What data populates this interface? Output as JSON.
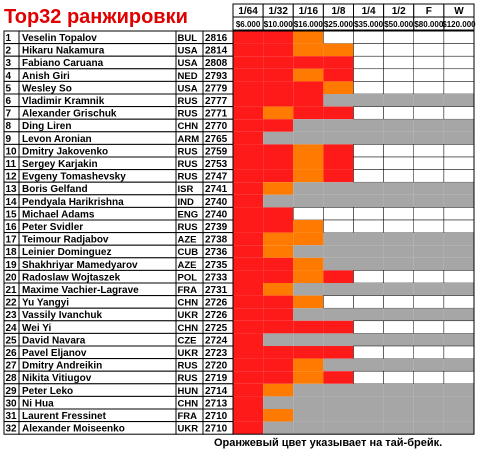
{
  "title": "Top32 ранжировки",
  "footnote": "Оранжевый цвет указывает на тай-брейк.",
  "colors": {
    "reached": "#ff1a1a",
    "tiebreak": "#ff7a00",
    "eliminated": "#a6a6a6",
    "empty": "#ffffff",
    "border": "#000000"
  },
  "chart_data": {
    "type": "table",
    "title": "Top32 ранжировки",
    "legend": {
      "tiebreak": "Оранжевый цвет указывает на тай-брейк."
    },
    "rounds": [
      "1/64",
      "1/32",
      "1/16",
      "1/8",
      "1/4",
      "1/2",
      "F",
      "W"
    ],
    "prizes": [
      "$6.000",
      "$10.000",
      "$16.000",
      "$25.000",
      "$35.000",
      "$50.000",
      "$80.000",
      "$120.000"
    ],
    "cell_states": "per round: R = reached (red), T = reached via tie-break (orange), E = eliminated (grey), - = empty",
    "players": [
      {
        "rank": "1",
        "name": "Veselin Topalov",
        "country": "BUL",
        "rating": "2816",
        "rounds": [
          "R",
          "R",
          "T",
          "-",
          "-",
          "-",
          "-",
          "-"
        ]
      },
      {
        "rank": "2",
        "name": "Hikaru Nakamura",
        "country": "USA",
        "rating": "2814",
        "rounds": [
          "R",
          "R",
          "T",
          "T",
          "-",
          "-",
          "-",
          "-"
        ]
      },
      {
        "rank": "3",
        "name": "Fabiano Caruana",
        "country": "USA",
        "rating": "2808",
        "rounds": [
          "R",
          "R",
          "R",
          "R",
          "-",
          "-",
          "-",
          "-"
        ]
      },
      {
        "rank": "4",
        "name": "Anish Giri",
        "country": "NED",
        "rating": "2793",
        "rounds": [
          "R",
          "R",
          "T",
          "R",
          "-",
          "-",
          "-",
          "-"
        ]
      },
      {
        "rank": "5",
        "name": "Wesley So",
        "country": "USA",
        "rating": "2779",
        "rounds": [
          "R",
          "R",
          "R",
          "T",
          "-",
          "-",
          "-",
          "-"
        ]
      },
      {
        "rank": "6",
        "name": "Vladimir Kramnik",
        "country": "RUS",
        "rating": "2777",
        "rounds": [
          "R",
          "R",
          "R",
          "E",
          "E",
          "E",
          "E",
          "E"
        ]
      },
      {
        "rank": "7",
        "name": "Alexander Grischuk",
        "country": "RUS",
        "rating": "2771",
        "rounds": [
          "R",
          "T",
          "R",
          "R",
          "-",
          "-",
          "-",
          "-"
        ]
      },
      {
        "rank": "8",
        "name": "Ding Liren",
        "country": "CHN",
        "rating": "2770",
        "rounds": [
          "R",
          "R",
          "E",
          "E",
          "E",
          "E",
          "E",
          "E"
        ]
      },
      {
        "rank": "9",
        "name": "Levon Aronian",
        "country": "ARM",
        "rating": "2765",
        "rounds": [
          "R",
          "E",
          "E",
          "E",
          "E",
          "E",
          "E",
          "E"
        ]
      },
      {
        "rank": "10",
        "name": "Dmitry Jakovenko",
        "country": "RUS",
        "rating": "2759",
        "rounds": [
          "R",
          "R",
          "T",
          "R",
          "-",
          "-",
          "-",
          "-"
        ]
      },
      {
        "rank": "11",
        "name": "Sergey Karjakin",
        "country": "RUS",
        "rating": "2753",
        "rounds": [
          "R",
          "R",
          "T",
          "R",
          "-",
          "-",
          "-",
          "-"
        ]
      },
      {
        "rank": "12",
        "name": "Evgeny Tomashevsky",
        "country": "RUS",
        "rating": "2747",
        "rounds": [
          "R",
          "R",
          "T",
          "R",
          "-",
          "-",
          "-",
          "-"
        ]
      },
      {
        "rank": "13",
        "name": "Boris Gelfand",
        "country": "ISR",
        "rating": "2741",
        "rounds": [
          "R",
          "T",
          "E",
          "E",
          "E",
          "E",
          "E",
          "E"
        ]
      },
      {
        "rank": "14",
        "name": "Pendyala Harikrishna",
        "country": "IND",
        "rating": "2740",
        "rounds": [
          "R",
          "E",
          "E",
          "E",
          "E",
          "E",
          "E",
          "E"
        ]
      },
      {
        "rank": "15",
        "name": "Michael Adams",
        "country": "ENG",
        "rating": "2740",
        "rounds": [
          "R",
          "R",
          "-",
          "-",
          "-",
          "-",
          "-",
          "-"
        ]
      },
      {
        "rank": "16",
        "name": "Peter Svidler",
        "country": "RUS",
        "rating": "2739",
        "rounds": [
          "R",
          "R",
          "T",
          "-",
          "-",
          "-",
          "-",
          "-"
        ]
      },
      {
        "rank": "17",
        "name": "Teimour Radjabov",
        "country": "AZE",
        "rating": "2738",
        "rounds": [
          "R",
          "T",
          "T",
          "E",
          "E",
          "E",
          "E",
          "E"
        ]
      },
      {
        "rank": "18",
        "name": "Leinier Dominguez",
        "country": "CUB",
        "rating": "2736",
        "rounds": [
          "R",
          "T",
          "E",
          "E",
          "E",
          "E",
          "E",
          "E"
        ]
      },
      {
        "rank": "19",
        "name": "Shakhriyar Mamedyarov",
        "country": "AZE",
        "rating": "2735",
        "rounds": [
          "R",
          "R",
          "T",
          "E",
          "E",
          "E",
          "E",
          "E"
        ]
      },
      {
        "rank": "20",
        "name": "Radoslaw Wojtaszek",
        "country": "POL",
        "rating": "2733",
        "rounds": [
          "R",
          "R",
          "T",
          "R",
          "-",
          "-",
          "-",
          "-"
        ]
      },
      {
        "rank": "21",
        "name": "Maxime Vachier-Lagrave",
        "country": "FRA",
        "rating": "2731",
        "rounds": [
          "R",
          "T",
          "E",
          "E",
          "E",
          "E",
          "E",
          "E"
        ]
      },
      {
        "rank": "22",
        "name": "Yu Yangyi",
        "country": "CHN",
        "rating": "2726",
        "rounds": [
          "R",
          "R",
          "T",
          "-",
          "-",
          "-",
          "-",
          "-"
        ]
      },
      {
        "rank": "23",
        "name": "Vassily Ivanchuk",
        "country": "UKR",
        "rating": "2726",
        "rounds": [
          "R",
          "R",
          "E",
          "E",
          "E",
          "E",
          "E",
          "E"
        ]
      },
      {
        "rank": "24",
        "name": "Wei Yi",
        "country": "CHN",
        "rating": "2725",
        "rounds": [
          "R",
          "R",
          "R",
          "R",
          "-",
          "-",
          "-",
          "-"
        ]
      },
      {
        "rank": "25",
        "name": "David Navara",
        "country": "CZE",
        "rating": "2724",
        "rounds": [
          "R",
          "E",
          "E",
          "E",
          "E",
          "E",
          "E",
          "E"
        ]
      },
      {
        "rank": "26",
        "name": "Pavel Eljanov",
        "country": "UKR",
        "rating": "2723",
        "rounds": [
          "R",
          "R",
          "R",
          "R",
          "-",
          "-",
          "-",
          "-"
        ]
      },
      {
        "rank": "27",
        "name": "Dmitry Andreikin",
        "country": "RUS",
        "rating": "2720",
        "rounds": [
          "R",
          "R",
          "T",
          "E",
          "E",
          "E",
          "E",
          "E"
        ]
      },
      {
        "rank": "28",
        "name": "Nikita Vitiugov",
        "country": "RUS",
        "rating": "2719",
        "rounds": [
          "R",
          "R",
          "T",
          "R",
          "-",
          "-",
          "-",
          "-"
        ]
      },
      {
        "rank": "29",
        "name": "Peter Leko",
        "country": "HUN",
        "rating": "2714",
        "rounds": [
          "R",
          "T",
          "E",
          "E",
          "E",
          "E",
          "E",
          "E"
        ]
      },
      {
        "rank": "30",
        "name": "Ni Hua",
        "country": "CHN",
        "rating": "2713",
        "rounds": [
          "R",
          "E",
          "E",
          "E",
          "E",
          "E",
          "E",
          "E"
        ]
      },
      {
        "rank": "31",
        "name": "Laurent Fressinet",
        "country": "FRA",
        "rating": "2710",
        "rounds": [
          "R",
          "T",
          "E",
          "E",
          "E",
          "E",
          "E",
          "E"
        ]
      },
      {
        "rank": "32",
        "name": "Alexander Moiseenko",
        "country": "UKR",
        "rating": "2710",
        "rounds": [
          "R",
          "E",
          "E",
          "E",
          "E",
          "E",
          "E",
          "E"
        ]
      }
    ]
  }
}
